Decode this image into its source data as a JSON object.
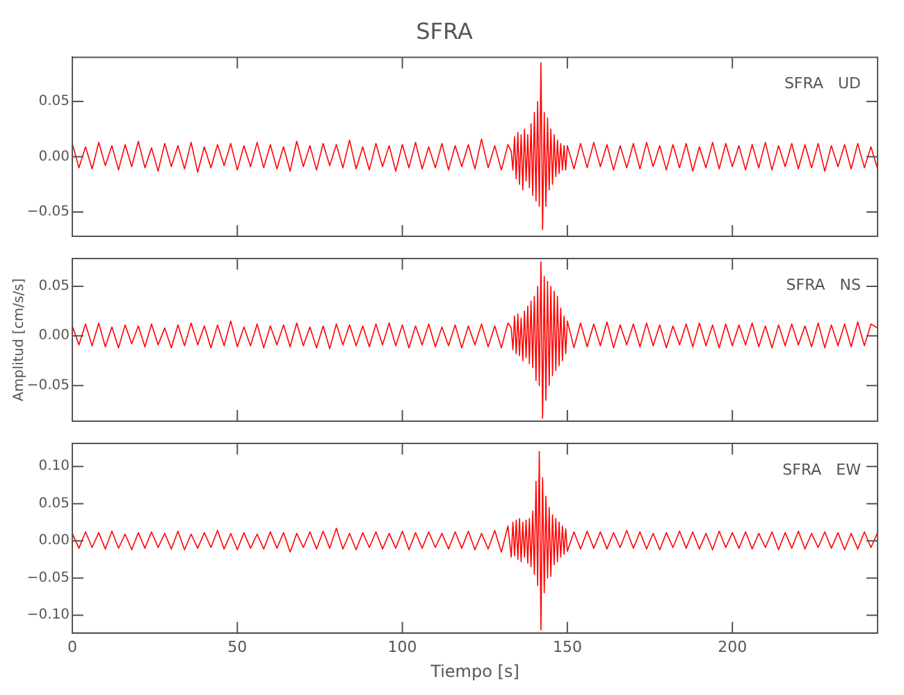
{
  "chart_data": [
    {
      "type": "line",
      "title": "SFRA",
      "annotations": [
        "SFRA   UD"
      ],
      "xlim": [
        0,
        244
      ],
      "xticks": [
        0,
        50,
        100,
        150,
        200
      ],
      "ylim": [
        -0.072,
        0.09
      ],
      "yticks": [
        {
          "value": 0.05,
          "label": "0.05"
        },
        {
          "value": 0,
          "label": "0.00"
        },
        {
          "value": -0.05,
          "label": "−0.05"
        }
      ],
      "tick_labels": "y",
      "grid": false,
      "legend": false,
      "x": [
        0,
        2,
        4,
        6,
        8,
        10,
        12,
        14,
        16,
        18,
        20,
        22,
        24,
        26,
        28,
        30,
        32,
        34,
        36,
        38,
        40,
        42,
        44,
        46,
        48,
        50,
        52,
        54,
        56,
        58,
        60,
        62,
        64,
        66,
        68,
        70,
        72,
        74,
        76,
        78,
        80,
        82,
        84,
        86,
        88,
        90,
        92,
        94,
        96,
        98,
        100,
        102,
        104,
        106,
        108,
        110,
        112,
        114,
        116,
        118,
        120,
        122,
        124,
        126,
        128,
        130,
        132,
        133,
        133.5,
        134,
        134.5,
        135,
        135.5,
        136,
        136.5,
        137,
        137.5,
        138,
        138.5,
        139,
        139.5,
        140,
        140.5,
        141,
        141.5,
        142,
        142.5,
        143,
        143.5,
        144,
        144.5,
        145,
        145.5,
        146,
        146.5,
        147,
        147.5,
        148,
        148.5,
        149,
        149.5,
        150,
        152,
        154,
        156,
        158,
        160,
        162,
        164,
        166,
        168,
        170,
        172,
        174,
        176,
        178,
        180,
        182,
        184,
        186,
        188,
        190,
        192,
        194,
        196,
        198,
        200,
        202,
        204,
        206,
        208,
        210,
        212,
        214,
        216,
        218,
        220,
        222,
        224,
        226,
        228,
        230,
        232,
        234,
        236,
        238,
        240,
        242,
        244
      ],
      "series": [
        {
          "color": "#ff0000",
          "values": [
            0.012,
            -0.01,
            0.009,
            -0.011,
            0.013,
            -0.008,
            0.01,
            -0.012,
            0.011,
            -0.009,
            0.014,
            -0.01,
            0.008,
            -0.013,
            0.012,
            -0.009,
            0.01,
            -0.011,
            0.013,
            -0.014,
            0.009,
            -0.01,
            0.011,
            -0.008,
            0.012,
            -0.012,
            0.01,
            -0.009,
            0.013,
            -0.01,
            0.011,
            -0.011,
            0.009,
            -0.013,
            0.014,
            -0.009,
            0.01,
            -0.012,
            0.012,
            -0.008,
            0.011,
            -0.01,
            0.015,
            -0.011,
            0.009,
            -0.012,
            0.012,
            -0.009,
            0.01,
            -0.013,
            0.011,
            -0.01,
            0.013,
            -0.011,
            0.009,
            -0.01,
            0.012,
            -0.012,
            0.01,
            -0.009,
            0.011,
            -0.011,
            0.016,
            -0.01,
            0.01,
            -0.012,
            0.011,
            0.005,
            -0.012,
            0.018,
            -0.02,
            0.022,
            -0.025,
            0.02,
            -0.03,
            0.025,
            -0.022,
            0.02,
            -0.028,
            0.03,
            -0.035,
            0.04,
            -0.04,
            0.05,
            -0.045,
            0.085,
            -0.066,
            0.04,
            -0.045,
            0.035,
            -0.03,
            0.025,
            -0.025,
            0.02,
            -0.018,
            0.015,
            -0.015,
            0.012,
            -0.012,
            0.01,
            -0.012,
            0.01,
            -0.011,
            0.012,
            -0.01,
            0.013,
            -0.009,
            0.011,
            -0.012,
            0.01,
            -0.01,
            0.012,
            -0.011,
            0.013,
            -0.009,
            0.01,
            -0.012,
            0.011,
            -0.01,
            0.012,
            -0.013,
            0.009,
            -0.01,
            0.013,
            -0.011,
            0.012,
            -0.009,
            0.01,
            -0.012,
            0.011,
            -0.01,
            0.013,
            -0.012,
            0.01,
            -0.009,
            0.012,
            -0.011,
            0.011,
            -0.01,
            0.012,
            -0.013,
            0.01,
            -0.009,
            0.011,
            -0.011,
            0.012,
            -0.01,
            0.009,
            -0.011
          ]
        }
      ]
    },
    {
      "type": "line",
      "ylabel": "Amplitud [cm/s/s]",
      "annotations": [
        "SFRA   NS"
      ],
      "xlim": [
        0,
        244
      ],
      "xticks": [
        0,
        50,
        100,
        150,
        200
      ],
      "ylim": [
        -0.086,
        0.078
      ],
      "yticks": [
        {
          "value": 0.05,
          "label": "0.05"
        },
        {
          "value": 0,
          "label": "0.00"
        },
        {
          "value": -0.05,
          "label": "−0.05"
        }
      ],
      "tick_labels": "y",
      "grid": false,
      "legend": false,
      "x": [
        0,
        2,
        4,
        6,
        8,
        10,
        12,
        14,
        16,
        18,
        20,
        22,
        24,
        26,
        28,
        30,
        32,
        34,
        36,
        38,
        40,
        42,
        44,
        46,
        48,
        50,
        52,
        54,
        56,
        58,
        60,
        62,
        64,
        66,
        68,
        70,
        72,
        74,
        76,
        78,
        80,
        82,
        84,
        86,
        88,
        90,
        92,
        94,
        96,
        98,
        100,
        102,
        104,
        106,
        108,
        110,
        112,
        114,
        116,
        118,
        120,
        122,
        124,
        126,
        128,
        130,
        132,
        133,
        133.5,
        134,
        134.5,
        135,
        135.5,
        136,
        136.5,
        137,
        137.5,
        138,
        138.5,
        139,
        139.5,
        140,
        140.5,
        141,
        141.5,
        142,
        142.5,
        143,
        143.5,
        144,
        144.5,
        145,
        145.5,
        146,
        146.5,
        147,
        147.5,
        148,
        148.5,
        149,
        149.5,
        150,
        152,
        154,
        156,
        158,
        160,
        162,
        164,
        166,
        168,
        170,
        172,
        174,
        176,
        178,
        180,
        182,
        184,
        186,
        188,
        190,
        192,
        194,
        196,
        198,
        200,
        202,
        204,
        206,
        208,
        210,
        212,
        214,
        216,
        218,
        220,
        222,
        224,
        226,
        228,
        230,
        232,
        234,
        236,
        238,
        240,
        242,
        244
      ],
      "series": [
        {
          "color": "#ff0000",
          "values": [
            0.01,
            -0.009,
            0.012,
            -0.01,
            0.013,
            -0.011,
            0.009,
            -0.012,
            0.011,
            -0.008,
            0.01,
            -0.011,
            0.012,
            -0.009,
            0.008,
            -0.012,
            0.011,
            -0.01,
            0.013,
            -0.009,
            0.01,
            -0.012,
            0.011,
            -0.01,
            0.015,
            -0.011,
            0.009,
            -0.01,
            0.012,
            -0.012,
            0.01,
            -0.009,
            0.011,
            -0.011,
            0.013,
            -0.01,
            0.009,
            -0.012,
            0.01,
            -0.013,
            0.012,
            -0.009,
            0.011,
            -0.01,
            0.01,
            -0.011,
            0.012,
            -0.009,
            0.013,
            -0.01,
            0.011,
            -0.012,
            0.01,
            -0.009,
            0.012,
            -0.011,
            0.009,
            -0.01,
            0.011,
            -0.012,
            0.01,
            -0.009,
            0.012,
            -0.011,
            0.01,
            -0.012,
            0.013,
            0.008,
            -0.014,
            0.02,
            -0.018,
            0.022,
            -0.02,
            0.018,
            -0.025,
            0.025,
            -0.022,
            0.03,
            -0.028,
            0.035,
            -0.032,
            0.04,
            -0.045,
            0.05,
            -0.05,
            0.075,
            -0.083,
            0.06,
            -0.065,
            0.055,
            -0.05,
            0.05,
            -0.04,
            0.045,
            -0.035,
            0.04,
            -0.03,
            0.028,
            -0.025,
            0.02,
            -0.018,
            0.015,
            -0.012,
            0.013,
            -0.011,
            0.012,
            -0.01,
            0.014,
            -0.012,
            0.011,
            -0.009,
            0.012,
            -0.011,
            0.013,
            -0.01,
            0.011,
            -0.012,
            0.01,
            -0.009,
            0.012,
            -0.011,
            0.013,
            -0.01,
            0.011,
            -0.012,
            0.012,
            -0.01,
            0.011,
            -0.009,
            0.013,
            -0.011,
            0.01,
            -0.012,
            0.011,
            -0.01,
            0.012,
            -0.009,
            0.01,
            -0.011,
            0.013,
            -0.012,
            0.011,
            -0.01,
            0.012,
            -0.011,
            0.014,
            -0.01,
            0.012,
            0.008
          ]
        }
      ]
    },
    {
      "type": "line",
      "xlabel": "Tiempo [s]",
      "annotations": [
        "SFRA   EW"
      ],
      "xlim": [
        0,
        244
      ],
      "xticks": [
        0,
        50,
        100,
        150,
        200
      ],
      "ylim": [
        -0.124,
        0.131
      ],
      "yticks": [
        {
          "value": 0.1,
          "label": "0.10"
        },
        {
          "value": 0.05,
          "label": "0.05"
        },
        {
          "value": 0,
          "label": "0.00"
        },
        {
          "value": -0.05,
          "label": "−0.05"
        },
        {
          "value": -0.1,
          "label": "−0.10"
        }
      ],
      "grid": false,
      "legend": false,
      "x": [
        0,
        2,
        4,
        6,
        8,
        10,
        12,
        14,
        16,
        18,
        20,
        22,
        24,
        26,
        28,
        30,
        32,
        34,
        36,
        38,
        40,
        42,
        44,
        46,
        48,
        50,
        52,
        54,
        56,
        58,
        60,
        62,
        64,
        66,
        68,
        70,
        72,
        74,
        76,
        78,
        80,
        82,
        84,
        86,
        88,
        90,
        92,
        94,
        96,
        98,
        100,
        102,
        104,
        106,
        108,
        110,
        112,
        114,
        116,
        118,
        120,
        122,
        124,
        126,
        128,
        130,
        132,
        133,
        133.5,
        134,
        134.5,
        135,
        135.5,
        136,
        136.5,
        137,
        137.5,
        138,
        138.5,
        139,
        139.5,
        140,
        140.5,
        141,
        141.5,
        142,
        142.5,
        143,
        143.5,
        144,
        144.5,
        145,
        145.5,
        146,
        146.5,
        147,
        147.5,
        148,
        148.5,
        149,
        149.5,
        150,
        152,
        154,
        156,
        158,
        160,
        162,
        164,
        166,
        168,
        170,
        172,
        174,
        176,
        178,
        180,
        182,
        184,
        186,
        188,
        190,
        192,
        194,
        196,
        198,
        200,
        202,
        204,
        206,
        208,
        210,
        212,
        214,
        216,
        218,
        220,
        222,
        224,
        226,
        228,
        230,
        232,
        234,
        236,
        238,
        240,
        242,
        244
      ],
      "series": [
        {
          "color": "#ff0000",
          "values": [
            0.01,
            -0.01,
            0.012,
            -0.009,
            0.011,
            -0.011,
            0.013,
            -0.01,
            0.009,
            -0.012,
            0.011,
            -0.01,
            0.012,
            -0.009,
            0.01,
            -0.011,
            0.013,
            -0.012,
            0.009,
            -0.01,
            0.011,
            -0.009,
            0.014,
            -0.011,
            0.01,
            -0.012,
            0.011,
            -0.01,
            0.009,
            -0.011,
            0.012,
            -0.01,
            0.011,
            -0.015,
            0.01,
            -0.009,
            0.012,
            -0.011,
            0.013,
            -0.01,
            0.017,
            -0.011,
            0.01,
            -0.012,
            0.011,
            -0.009,
            0.012,
            -0.011,
            0.01,
            -0.01,
            0.013,
            -0.012,
            0.011,
            -0.01,
            0.012,
            -0.009,
            0.01,
            -0.011,
            0.012,
            -0.01,
            0.013,
            -0.012,
            0.01,
            -0.011,
            0.014,
            -0.015,
            0.02,
            -0.022,
            0.025,
            -0.02,
            0.028,
            -0.025,
            0.03,
            -0.028,
            0.025,
            -0.022,
            0.028,
            -0.03,
            0.03,
            -0.035,
            0.04,
            -0.045,
            0.08,
            -0.06,
            0.12,
            -0.12,
            0.085,
            -0.07,
            0.06,
            -0.05,
            0.045,
            -0.048,
            0.035,
            -0.032,
            0.03,
            -0.028,
            0.025,
            -0.022,
            0.02,
            -0.018,
            0.016,
            -0.014,
            0.012,
            -0.011,
            0.013,
            -0.01,
            0.012,
            -0.011,
            0.011,
            -0.009,
            0.014,
            -0.01,
            0.012,
            -0.011,
            0.01,
            -0.012,
            0.011,
            -0.009,
            0.013,
            -0.01,
            0.012,
            -0.011,
            0.01,
            -0.012,
            0.013,
            -0.009,
            0.011,
            -0.01,
            0.012,
            -0.011,
            0.01,
            -0.009,
            0.012,
            -0.012,
            0.011,
            -0.01,
            0.013,
            -0.011,
            0.01,
            -0.009,
            0.012,
            -0.01,
            0.011,
            -0.012,
            0.01,
            -0.011,
            0.012,
            -0.009,
            0.011
          ]
        }
      ]
    }
  ]
}
